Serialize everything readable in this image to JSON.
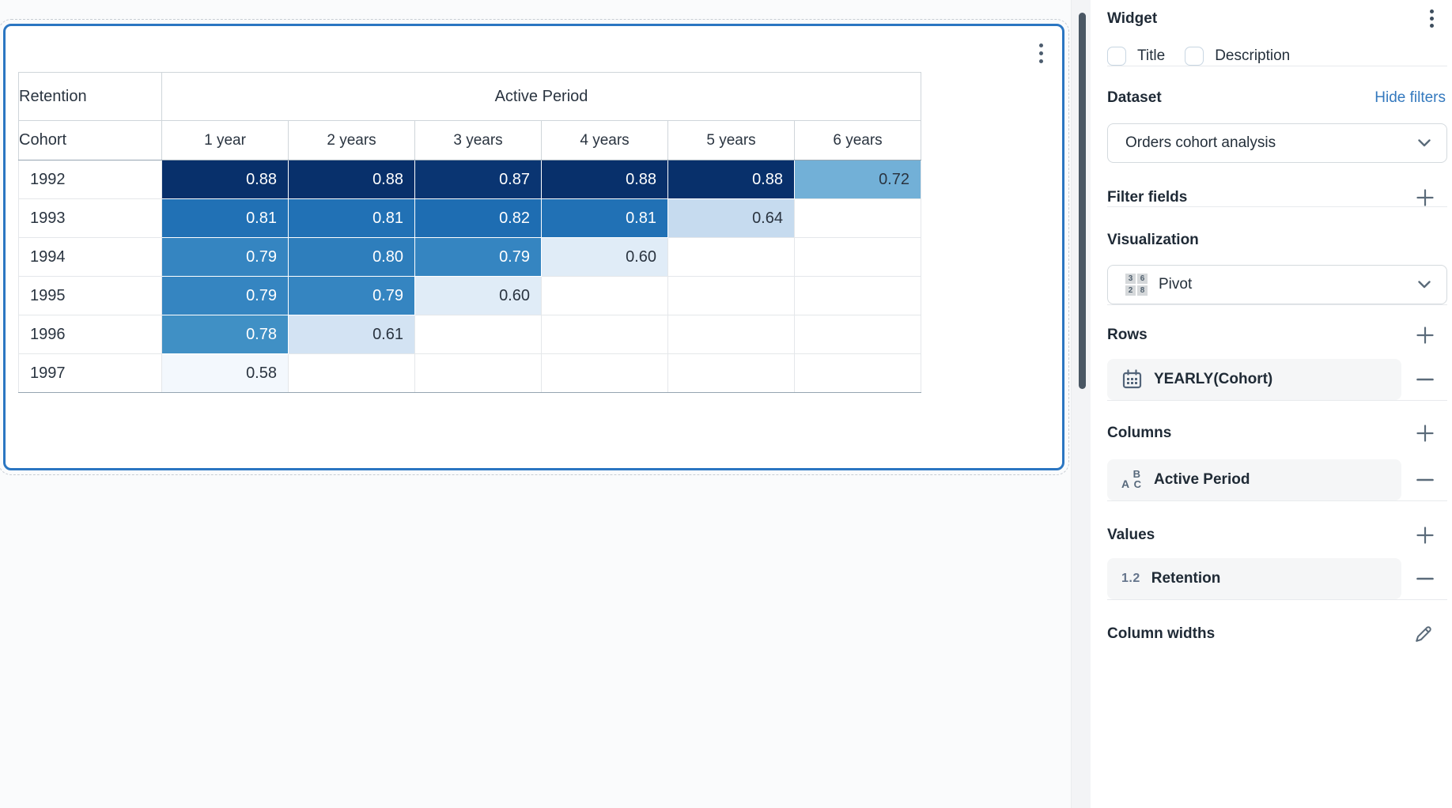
{
  "pivot": {
    "measure_label": "Retention",
    "column_group_label": "Active Period",
    "row_dimension_label": "Cohort",
    "column_headers": [
      "1 year",
      "2 years",
      "3 years",
      "4 years",
      "5 years",
      "6 years"
    ],
    "rows": [
      {
        "cohort": "1992",
        "cells": [
          {
            "value": "0.88",
            "bg": "#08306b",
            "text": "light"
          },
          {
            "value": "0.88",
            "bg": "#08306b",
            "text": "light"
          },
          {
            "value": "0.87",
            "bg": "#0a3572",
            "text": "light"
          },
          {
            "value": "0.88",
            "bg": "#08306b",
            "text": "light"
          },
          {
            "value": "0.88",
            "bg": "#08306b",
            "text": "light"
          },
          {
            "value": "0.72",
            "bg": "#72b0d7",
            "text": "dark"
          }
        ]
      },
      {
        "cohort": "1993",
        "cells": [
          {
            "value": "0.81",
            "bg": "#2171b5",
            "text": "light"
          },
          {
            "value": "0.81",
            "bg": "#2171b5",
            "text": "light"
          },
          {
            "value": "0.82",
            "bg": "#1e6db2",
            "text": "light"
          },
          {
            "value": "0.81",
            "bg": "#2171b5",
            "text": "light"
          },
          {
            "value": "0.64",
            "bg": "#c6dbef",
            "text": "dark"
          },
          null
        ]
      },
      {
        "cohort": "1994",
        "cells": [
          {
            "value": "0.79",
            "bg": "#3585c1",
            "text": "light"
          },
          {
            "value": "0.80",
            "bg": "#2e7ebc",
            "text": "light"
          },
          {
            "value": "0.79",
            "bg": "#3585c1",
            "text": "light"
          },
          {
            "value": "0.60",
            "bg": "#e0ecf7",
            "text": "dark"
          },
          null,
          null
        ]
      },
      {
        "cohort": "1995",
        "cells": [
          {
            "value": "0.79",
            "bg": "#3585c1",
            "text": "light"
          },
          {
            "value": "0.79",
            "bg": "#3585c1",
            "text": "light"
          },
          {
            "value": "0.60",
            "bg": "#e0ecf7",
            "text": "dark"
          },
          null,
          null,
          null
        ]
      },
      {
        "cohort": "1996",
        "cells": [
          {
            "value": "0.78",
            "bg": "#4090c5",
            "text": "light"
          },
          {
            "value": "0.61",
            "bg": "#d3e3f3",
            "text": "dark"
          },
          null,
          null,
          null,
          null
        ]
      },
      {
        "cohort": "1997",
        "cells": [
          {
            "value": "0.58",
            "bg": "#f3f8fd",
            "text": "dark"
          },
          null,
          null,
          null,
          null,
          null
        ]
      }
    ],
    "value_text_colors": {
      "light": "#ffffff",
      "dark": "#2a3440"
    }
  },
  "chart_data": {
    "type": "heatmap",
    "title": "",
    "x_labels": [
      "1 year",
      "2 years",
      "3 years",
      "4 years",
      "5 years",
      "6 years"
    ],
    "y_labels": [
      "1992",
      "1993",
      "1994",
      "1995",
      "1996",
      "1997"
    ],
    "values": [
      [
        0.88,
        0.88,
        0.87,
        0.88,
        0.88,
        0.72
      ],
      [
        0.81,
        0.81,
        0.82,
        0.81,
        0.64,
        null
      ],
      [
        0.79,
        0.8,
        0.79,
        0.6,
        null,
        null
      ],
      [
        0.79,
        0.79,
        0.6,
        null,
        null,
        null
      ],
      [
        0.78,
        0.61,
        null,
        null,
        null,
        null
      ],
      [
        0.58,
        null,
        null,
        null,
        null,
        null
      ]
    ],
    "value_label": "Retention",
    "color_scale": [
      "#f7fbff",
      "#08306b"
    ]
  },
  "panel": {
    "title": "Widget",
    "checkboxes": [
      {
        "label": "Title",
        "checked": false
      },
      {
        "label": "Description",
        "checked": false
      }
    ],
    "dataset": {
      "heading": "Dataset",
      "link": "Hide filters",
      "selected": "Orders cohort analysis"
    },
    "filter_fields": {
      "heading": "Filter fields"
    },
    "visualization": {
      "heading": "Visualization",
      "selected": "Pivot",
      "icon_digits": [
        "3",
        "6",
        "2",
        "8"
      ]
    },
    "rows_section": {
      "heading": "Rows",
      "field": "YEARLY(Cohort)"
    },
    "columns_section": {
      "heading": "Columns",
      "field": "Active Period"
    },
    "values_section": {
      "heading": "Values",
      "field": "Retention",
      "format_badge": "1.2"
    },
    "column_widths": {
      "heading": "Column widths"
    }
  },
  "colors": {
    "card_border": "#2b76c2",
    "link_blue": "#3479be",
    "scrollbar_thumb": "#4a5764",
    "panel_icon": "#5b6b7a"
  }
}
